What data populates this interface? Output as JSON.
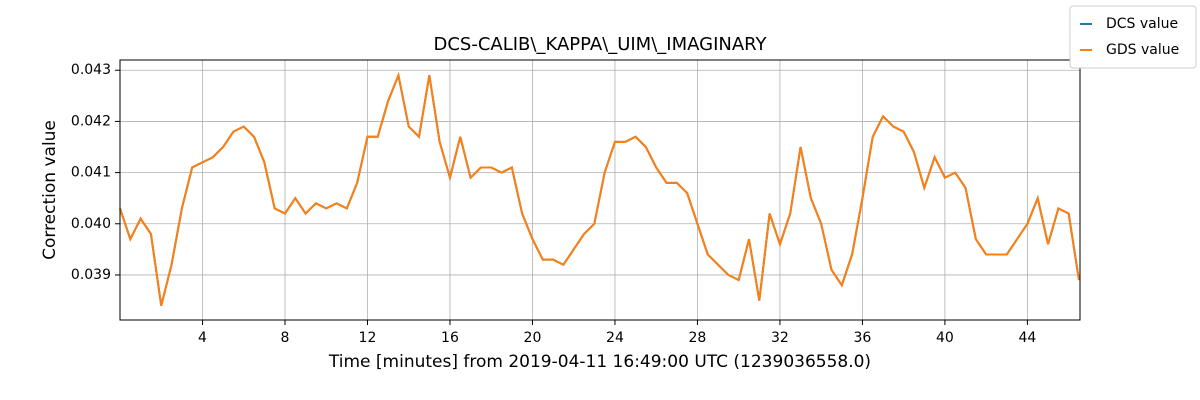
{
  "chart_data": {
    "type": "line",
    "title": "DCS-CALIB\\_KAPPA\\_UIM\\_IMAGINARY",
    "xlabel": "Time [minutes] from 2019-04-11 16:49:00 UTC (1239036558.0)",
    "ylabel": "Correction value",
    "x": [
      0,
      0.5,
      1,
      1.5,
      2,
      2.5,
      3,
      3.5,
      4,
      4.5,
      5,
      5.5,
      6,
      6.5,
      7,
      7.5,
      8,
      8.5,
      9,
      9.5,
      10,
      10.5,
      11,
      11.5,
      12,
      12.5,
      13,
      13.5,
      14,
      14.5,
      15,
      15.5,
      16,
      16.5,
      17,
      17.5,
      18,
      18.5,
      19,
      19.5,
      20,
      20.5,
      21,
      21.5,
      22,
      22.5,
      23,
      23.5,
      24,
      24.5,
      25,
      25.5,
      26,
      26.5,
      27,
      27.5,
      28,
      28.5,
      29,
      29.5,
      30,
      30.5,
      31,
      31.5,
      32,
      32.5,
      33,
      33.5,
      34,
      34.5,
      35,
      35.5,
      36,
      36.5,
      37,
      37.5,
      38,
      38.5,
      39,
      39.5,
      40,
      40.5,
      41,
      41.5,
      42,
      42.5,
      43,
      43.5,
      44,
      44.5,
      45,
      45.5,
      46,
      46.5
    ],
    "series": [
      {
        "name": "DCS value",
        "color": "#1f77b4",
        "values": [
          0.0403,
          0.0397,
          0.0401,
          0.0398,
          0.0384,
          0.0392,
          0.0403,
          0.0411,
          0.0412,
          0.0413,
          0.0415,
          0.0418,
          0.0419,
          0.0417,
          0.0412,
          0.0403,
          0.0402,
          0.0405,
          0.0402,
          0.0404,
          0.0403,
          0.0404,
          0.0403,
          0.0408,
          0.0417,
          0.0417,
          0.0424,
          0.0429,
          0.0419,
          0.0417,
          0.0429,
          0.0416,
          0.0409,
          0.0417,
          0.0409,
          0.0411,
          0.0411,
          0.041,
          0.0411,
          0.0402,
          0.0397,
          0.0393,
          0.0393,
          0.0392,
          0.0395,
          0.0398,
          0.04,
          0.041,
          0.0416,
          0.0416,
          0.0417,
          0.0415,
          0.0411,
          0.0408,
          0.0408,
          0.0406,
          0.04,
          0.0394,
          0.0392,
          0.039,
          0.0389,
          0.0397,
          0.0385,
          0.0402,
          0.0396,
          0.0402,
          0.0415,
          0.0405,
          0.04,
          0.0391,
          0.0388,
          0.0394,
          0.0405,
          0.0417,
          0.0421,
          0.0419,
          0.0418,
          0.0414,
          0.0407,
          0.0413,
          0.0409,
          0.041,
          0.0407,
          0.0397,
          0.0394,
          0.0394,
          0.0394,
          0.0397,
          0.04,
          0.0405,
          0.0396,
          0.0403,
          0.0402,
          0.0389
        ]
      },
      {
        "name": "GDS value",
        "color": "#ff7f0e",
        "values": [
          0.0403,
          0.0397,
          0.0401,
          0.0398,
          0.0384,
          0.0392,
          0.0403,
          0.0411,
          0.0412,
          0.0413,
          0.0415,
          0.0418,
          0.0419,
          0.0417,
          0.0412,
          0.0403,
          0.0402,
          0.0405,
          0.0402,
          0.0404,
          0.0403,
          0.0404,
          0.0403,
          0.0408,
          0.0417,
          0.0417,
          0.0424,
          0.0429,
          0.0419,
          0.0417,
          0.0429,
          0.0416,
          0.0409,
          0.0417,
          0.0409,
          0.0411,
          0.0411,
          0.041,
          0.0411,
          0.0402,
          0.0397,
          0.0393,
          0.0393,
          0.0392,
          0.0395,
          0.0398,
          0.04,
          0.041,
          0.0416,
          0.0416,
          0.0417,
          0.0415,
          0.0411,
          0.0408,
          0.0408,
          0.0406,
          0.04,
          0.0394,
          0.0392,
          0.039,
          0.0389,
          0.0397,
          0.0385,
          0.0402,
          0.0396,
          0.0402,
          0.0415,
          0.0405,
          0.04,
          0.0391,
          0.0388,
          0.0394,
          0.0405,
          0.0417,
          0.0421,
          0.0419,
          0.0418,
          0.0414,
          0.0407,
          0.0413,
          0.0409,
          0.041,
          0.0407,
          0.0397,
          0.0394,
          0.0394,
          0.0394,
          0.0397,
          0.04,
          0.0405,
          0.0396,
          0.0403,
          0.0402,
          0.0389
        ]
      }
    ],
    "xlim": [
      0,
      46.55
    ],
    "ylim": [
      0.03812,
      0.0432
    ],
    "xticks": [
      4,
      8,
      12,
      16,
      20,
      24,
      28,
      32,
      36,
      40,
      44
    ],
    "yticks": [
      0.039,
      {
        "value": 0.04,
        "label": "0.040"
      },
      0.041,
      0.042,
      0.043
    ],
    "grid": true,
    "legend": "upper right"
  }
}
